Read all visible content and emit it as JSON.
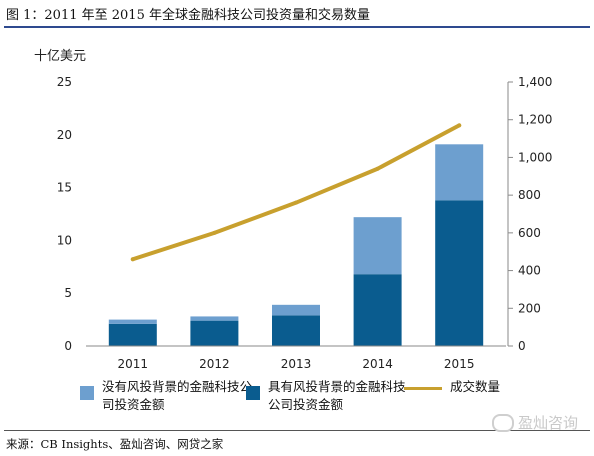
{
  "figure": {
    "title": "图 1：2011 年至 2015 年全球金融科技公司投资量和交易数量",
    "unit_label": "十亿美元",
    "source": "来源：CB Insights、盈灿咨询、网贷之家",
    "watermark": "盈灿咨询",
    "watermark_icon": "wechat-icon"
  },
  "colors": {
    "without_vc": "#6d9fcf",
    "with_vc": "#0a5c8f",
    "deals": "#c8a02e",
    "rule": "#2e4a8f"
  },
  "chart_data": {
    "type": "bar",
    "stacked": true,
    "categories": [
      "2011",
      "2012",
      "2013",
      "2014",
      "2015"
    ],
    "series": [
      {
        "name": "具有风投背景的金融科技公司投资金额",
        "type": "bar",
        "axis": "left",
        "values": [
          2.1,
          2.4,
          2.9,
          6.8,
          13.8
        ]
      },
      {
        "name": "没有风投背景的金融科技公司投资金额",
        "type": "bar",
        "axis": "left",
        "values": [
          0.4,
          0.4,
          1.0,
          5.4,
          5.3
        ]
      },
      {
        "name": "成交数量",
        "type": "line",
        "axis": "right",
        "values": [
          460,
          600,
          760,
          940,
          1170
        ]
      }
    ],
    "ylim_left": [
      0,
      25
    ],
    "yticks_left": [
      "0",
      "5",
      "10",
      "15",
      "20",
      "25"
    ],
    "ylim_right": [
      0,
      1400
    ],
    "yticks_right": [
      "0",
      "200",
      "400",
      "600",
      "800",
      "1,000",
      "1,200",
      "1,400"
    ],
    "grid": false,
    "legend_position": "bottom"
  }
}
